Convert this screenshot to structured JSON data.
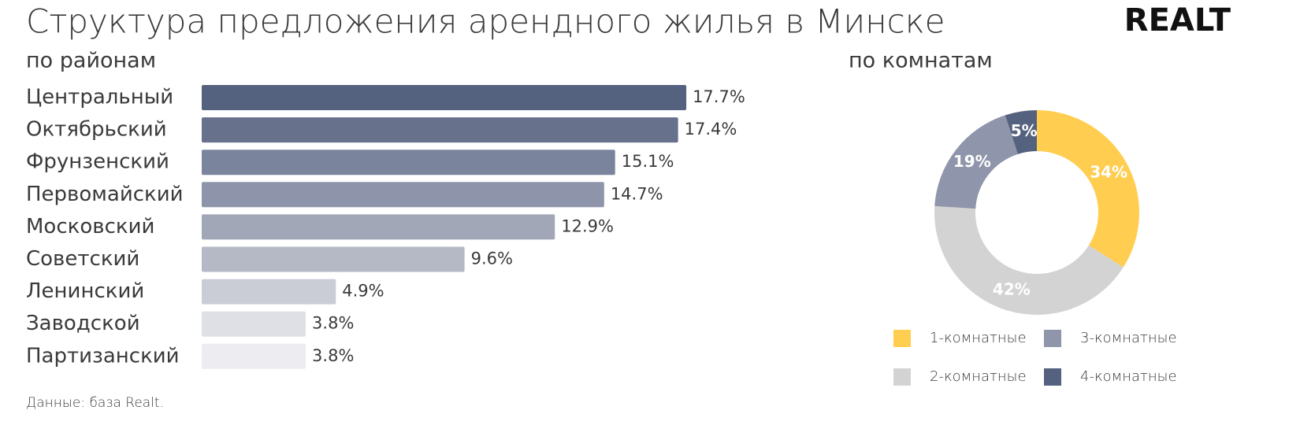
{
  "title": "Структура предложения арендного жилья в Минске",
  "logo": "REALT",
  "source": "Данные: база Realt.",
  "chart_data": [
    {
      "type": "bar",
      "orientation": "horizontal",
      "subtitle": "по районам",
      "categories": [
        "Центральный",
        "Октябрьский",
        "Фрунзенский",
        "Первомайский",
        "Московский",
        "Советский",
        "Ленинский",
        "Заводской",
        "Партизанский"
      ],
      "values": [
        17.7,
        17.4,
        15.1,
        14.7,
        12.9,
        9.6,
        4.9,
        3.8,
        3.8
      ],
      "value_labels": [
        "17.7%",
        "17.4%",
        "15.1%",
        "14.7%",
        "12.9%",
        "9.6%",
        "4.9%",
        "3.8%",
        "3.8%"
      ],
      "colors": [
        "#55627f",
        "#67718c",
        "#7b849d",
        "#8e95aa",
        "#a2a7b7",
        "#b5b9c6",
        "#cbcdd6",
        "#dfe0e6",
        "#edecf1"
      ]
    },
    {
      "type": "pie",
      "donut": true,
      "subtitle": "по комнатам",
      "categories": [
        "1-комнатные",
        "2-комнатные",
        "3-комнатные",
        "4-комнатные"
      ],
      "values": [
        34,
        42,
        19,
        5
      ],
      "value_labels": [
        "34%",
        "42%",
        "19%",
        "5%"
      ],
      "colors": [
        "#ffcd4f",
        "#d4d3d4",
        "#8f95aa",
        "#55627f"
      ],
      "legend": "bottom"
    }
  ]
}
